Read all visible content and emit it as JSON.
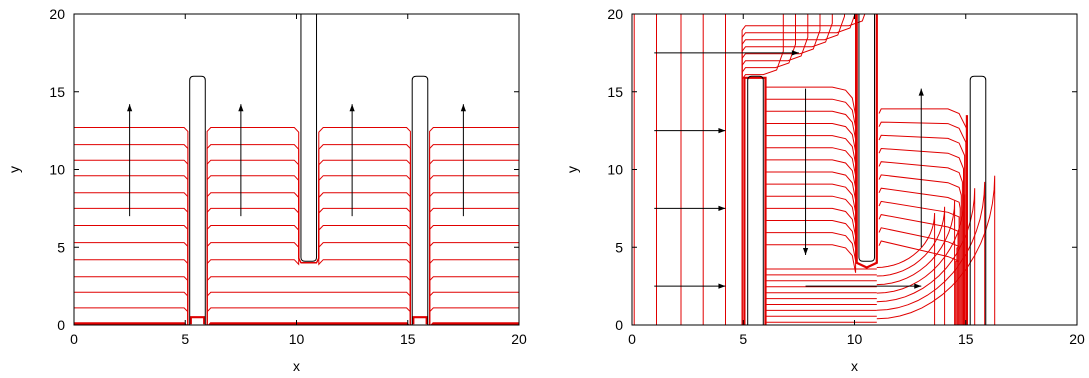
{
  "chart_data": [
    {
      "type": "line",
      "xlabel": "x",
      "ylabel": "y",
      "xlim": [
        0,
        20
      ],
      "ylim": [
        0,
        20
      ],
      "xticks": [
        0,
        5,
        10,
        15,
        20
      ],
      "yticks": [
        0,
        5,
        10,
        15,
        20
      ],
      "grid": false,
      "colors": {
        "contour": "#e00000",
        "plate": "#000000",
        "arrow": "#000000"
      },
      "plates": [
        {
          "x0": 5.2,
          "x1": 5.9,
          "y0": 0,
          "y1": 16.0
        },
        {
          "x0": 10.2,
          "x1": 10.9,
          "y0": 4.1,
          "y1": 20.0
        },
        {
          "x0": 15.2,
          "x1": 15.9,
          "y0": 0,
          "y1": 16.0
        }
      ],
      "contour_levels_y": [
        0.1,
        1.1,
        2.1,
        3.1,
        4.2,
        5.3,
        6.4,
        7.5,
        8.5,
        9.6,
        10.6,
        11.6,
        12.7
      ],
      "arrows": [
        {
          "x0": 2.5,
          "y0": 7.0,
          "x1": 2.5,
          "y1": 14.2
        },
        {
          "x0": 7.5,
          "y0": 7.0,
          "x1": 7.5,
          "y1": 14.2
        },
        {
          "x0": 12.5,
          "y0": 7.0,
          "x1": 12.5,
          "y1": 14.2
        },
        {
          "x0": 17.5,
          "y0": 7.0,
          "x1": 17.5,
          "y1": 14.2
        }
      ]
    },
    {
      "type": "line",
      "xlabel": "x",
      "ylabel": "y",
      "xlim": [
        0,
        20
      ],
      "ylim": [
        0,
        20
      ],
      "xticks": [
        0,
        5,
        10,
        15,
        20
      ],
      "yticks": [
        0,
        5,
        10,
        15,
        20
      ],
      "grid": false,
      "colors": {
        "contour": "#e00000",
        "plate": "#000000",
        "arrow": "#000000"
      },
      "plates": [
        {
          "x0": 5.2,
          "x1": 5.9,
          "y0": 0,
          "y1": 16.0
        },
        {
          "x0": 10.2,
          "x1": 10.9,
          "y0": 4.1,
          "y1": 20.0
        },
        {
          "x0": 15.2,
          "x1": 15.9,
          "y0": 0,
          "y1": 16.0
        }
      ],
      "left_lines_x": [
        0.1,
        1.1,
        2.2,
        3.2,
        4.2
      ],
      "arrows": [
        {
          "x0": 1.0,
          "y0": 17.5,
          "x1": 7.5,
          "y1": 17.5
        },
        {
          "x0": 1.0,
          "y0": 12.5,
          "x1": 4.2,
          "y1": 12.5
        },
        {
          "x0": 1.0,
          "y0": 7.5,
          "x1": 4.2,
          "y1": 7.5
        },
        {
          "x0": 1.0,
          "y0": 2.5,
          "x1": 4.2,
          "y1": 2.5
        },
        {
          "x0": 7.8,
          "y0": 15.2,
          "x1": 7.8,
          "y1": 4.5
        },
        {
          "x0": 7.8,
          "y0": 2.5,
          "x1": 13.0,
          "y1": 2.5
        },
        {
          "x0": 13.0,
          "y0": 5.0,
          "x1": 13.0,
          "y1": 15.2
        }
      ]
    }
  ]
}
